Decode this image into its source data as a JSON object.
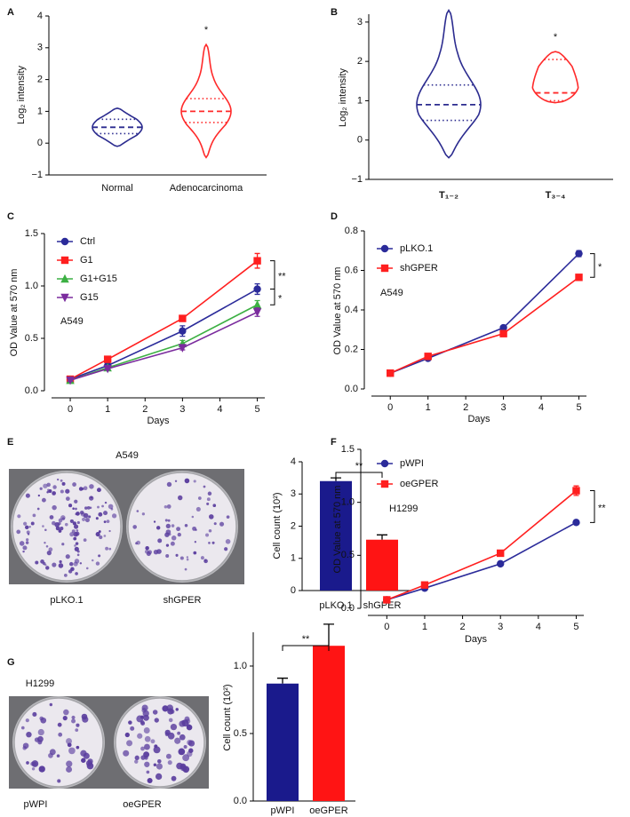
{
  "chart_data": [
    {
      "type": "violin",
      "panel": "A",
      "ylabel": "Log₂ intensity",
      "categories": [
        "Normal",
        "Adenocarcinoma"
      ],
      "colors": [
        "#2b2b8f",
        "#ff2a2a"
      ],
      "stats": [
        {
          "min": -0.1,
          "q1": 0.3,
          "median": 0.5,
          "q3": 0.75,
          "max": 1.1
        },
        {
          "min": -0.45,
          "q1": 0.65,
          "median": 1.0,
          "q3": 1.4,
          "max": 3.1
        }
      ],
      "significance": "*",
      "ylim": [
        -1,
        4
      ],
      "yticks": [
        {
          "value": -1,
          "label": "−1"
        },
        0,
        1,
        2,
        3,
        4
      ]
    },
    {
      "type": "violin",
      "panel": "B",
      "ylabel": "Log₂ intensity",
      "categories": [
        "T₁₋₂",
        "T₃₋₄"
      ],
      "colors": [
        "#2b2b8f",
        "#ff2a2a"
      ],
      "stats": [
        {
          "min": -0.45,
          "q1": 0.5,
          "median": 0.9,
          "q3": 1.4,
          "max": 3.3
        },
        {
          "min": 0.95,
          "q1": 1.0,
          "median": 1.2,
          "q3": 2.05,
          "max": 2.25
        }
      ],
      "significance": "*",
      "ylim": [
        -1,
        3.2
      ],
      "yticks": [
        {
          "value": -1,
          "label": "−1"
        },
        0,
        1,
        2,
        3
      ]
    },
    {
      "type": "line",
      "panel": "C",
      "xlabel": "Days",
      "ylabel": "OD Value at 570 nm",
      "cell_line": "A549",
      "x": [
        0,
        1,
        3,
        5
      ],
      "series": [
        {
          "name": "Ctrl",
          "color": "#2b2b9a",
          "marker": "circle",
          "values": [
            0.11,
            0.24,
            0.57,
            0.97
          ],
          "errors": [
            0.02,
            0.02,
            0.05,
            0.05
          ]
        },
        {
          "name": "G1",
          "color": "#ff1f1f",
          "marker": "square",
          "values": [
            0.11,
            0.3,
            0.69,
            1.24
          ],
          "errors": [
            0.01,
            0.02,
            0.02,
            0.07
          ]
        },
        {
          "name": "G1+G15",
          "color": "#3cb043",
          "marker": "triangle-up",
          "values": [
            0.1,
            0.22,
            0.45,
            0.82
          ],
          "errors": [
            0.01,
            0.01,
            0.03,
            0.04
          ]
        },
        {
          "name": "G15",
          "color": "#7b2c9e",
          "marker": "triangle-down",
          "values": [
            0.1,
            0.21,
            0.41,
            0.75
          ],
          "errors": [
            0.01,
            0.01,
            0.02,
            0.04
          ]
        }
      ],
      "significance": [
        "**",
        "*"
      ],
      "xlim": [
        -0.5,
        5.2
      ],
      "xticks": [
        0,
        1,
        2,
        3,
        4,
        5
      ],
      "ylim": [
        0,
        1.5
      ],
      "yticks": [
        {
          "value": 0,
          "label": "0.0"
        },
        {
          "value": 0.5,
          "label": "0.5"
        },
        {
          "value": 1,
          "label": "1.0"
        },
        {
          "value": 1.5,
          "label": "1.5"
        }
      ]
    },
    {
      "type": "line",
      "panel": "D",
      "xlabel": "Days",
      "ylabel": "OD Value at 570 nm",
      "cell_line": "A549",
      "x": [
        0,
        1,
        3,
        5
      ],
      "series": [
        {
          "name": "pLKO.1",
          "color": "#2b2b9a",
          "marker": "circle",
          "values": [
            0.08,
            0.155,
            0.31,
            0.685
          ],
          "errors": [
            0.005,
            0.005,
            0.01,
            0.015
          ]
        },
        {
          "name": "shGPER",
          "color": "#ff1f1f",
          "marker": "square",
          "values": [
            0.08,
            0.165,
            0.28,
            0.565
          ],
          "errors": [
            0.005,
            0.005,
            0.01,
            0.008
          ]
        }
      ],
      "significance": [
        "*"
      ],
      "xlim": [
        -0.5,
        5.2
      ],
      "xticks": [
        0,
        1,
        2,
        3,
        4,
        5
      ],
      "ylim": [
        0,
        0.8
      ],
      "yticks": [
        {
          "value": 0,
          "label": "0.0"
        },
        {
          "value": 0.2,
          "label": "0.2"
        },
        {
          "value": 0.4,
          "label": "0.4"
        },
        {
          "value": 0.6,
          "label": "0.6"
        },
        {
          "value": 0.8,
          "label": "0.8"
        }
      ]
    },
    {
      "type": "bar",
      "panel": "E",
      "image_title": "A549",
      "image_labels": [
        "pLKO.1",
        "shGPER"
      ],
      "ylabel": "Cell count (10²)",
      "categories": [
        "pLKO.1",
        "shGPER"
      ],
      "values": [
        3.4,
        1.58
      ],
      "errors": [
        0.1,
        0.15
      ],
      "colors": [
        "#1a1a8c",
        "#ff1414"
      ],
      "significance": "**",
      "ylim": [
        0,
        4
      ],
      "yticks": [
        0,
        1,
        2,
        3,
        4
      ]
    },
    {
      "type": "line",
      "panel": "F",
      "xlabel": "Days",
      "ylabel": "OD Value at 570 nm",
      "cell_line": "H1299",
      "x": [
        0,
        1,
        3,
        5
      ],
      "series": [
        {
          "name": "pWPI",
          "color": "#2b2b9a",
          "marker": "circle",
          "values": [
            0.08,
            0.19,
            0.42,
            0.81
          ],
          "errors": [
            0.005,
            0.01,
            0.01,
            0.01
          ]
        },
        {
          "name": "oeGPER",
          "color": "#ff1f1f",
          "marker": "square",
          "values": [
            0.08,
            0.22,
            0.52,
            1.11
          ],
          "errors": [
            0.005,
            0.01,
            0.01,
            0.045
          ]
        }
      ],
      "significance": [
        "**"
      ],
      "xlim": [
        -0.5,
        5.2
      ],
      "xticks": [
        0,
        1,
        2,
        3,
        4,
        5
      ],
      "ylim": [
        0,
        1.5
      ],
      "yticks": [
        {
          "value": 0,
          "label": "0.0"
        },
        {
          "value": 0.5,
          "label": "0.5"
        },
        {
          "value": 1,
          "label": "1.0"
        },
        {
          "value": 1.5,
          "label": "1.5"
        }
      ]
    },
    {
      "type": "bar",
      "panel": "G",
      "image_title": "H1299",
      "image_labels": [
        "pWPI",
        "oeGPER"
      ],
      "ylabel": "Cell count (10²)",
      "categories": [
        "pWPI",
        "oeGPER"
      ],
      "values": [
        0.87,
        1.15
      ],
      "errors": [
        0.04,
        0.16
      ],
      "colors": [
        "#1a1a8c",
        "#ff1414"
      ],
      "significance": "**",
      "ylim": [
        0,
        1.25
      ],
      "yticks": [
        {
          "value": 0,
          "label": "0.0"
        },
        {
          "value": 0.5,
          "label": "0.5"
        },
        {
          "value": 1,
          "label": "1.0"
        }
      ]
    }
  ]
}
